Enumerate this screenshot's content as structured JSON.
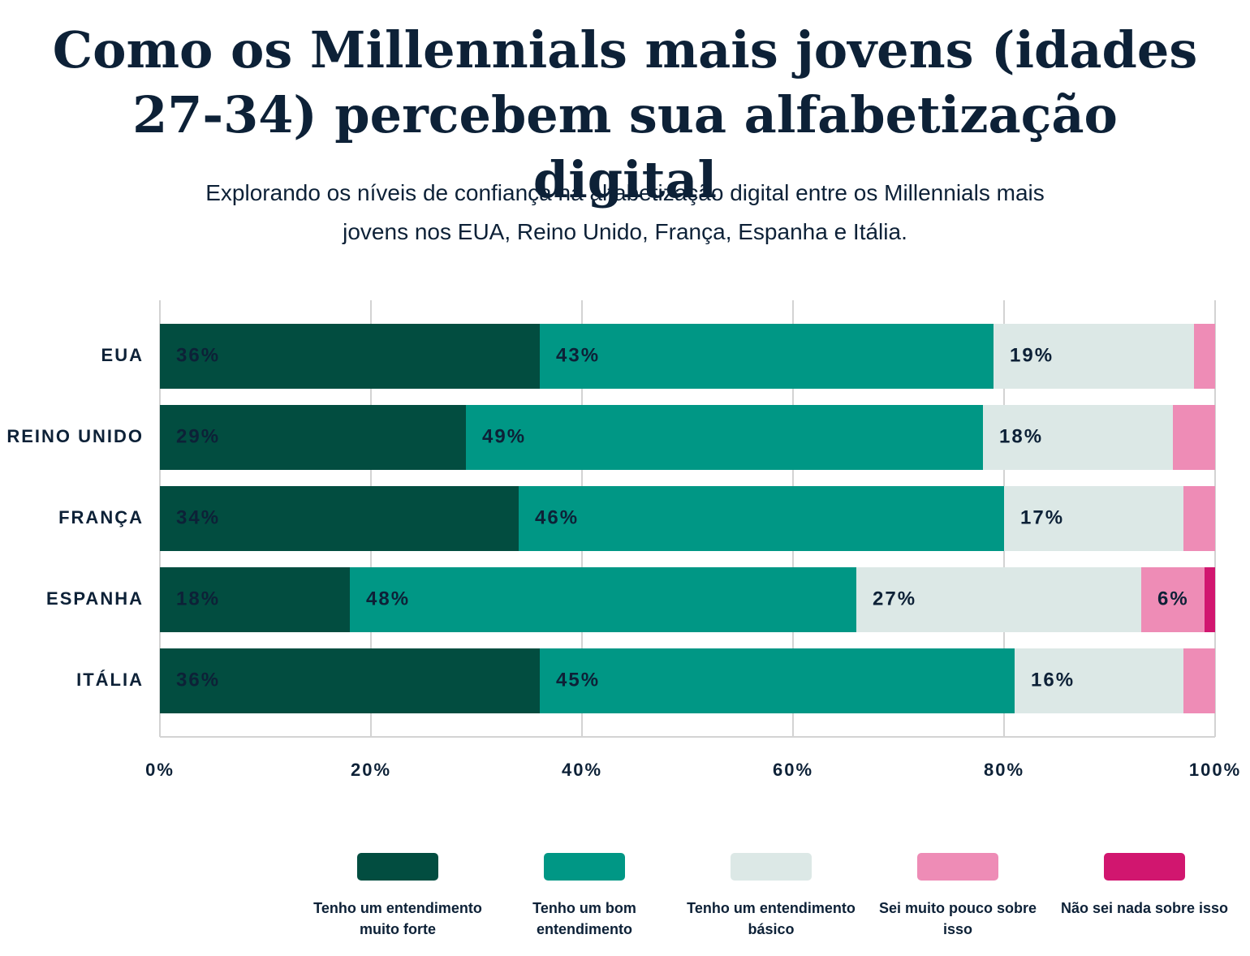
{
  "chart_data": {
    "type": "stacked-bar-horizontal",
    "title": "Como os Millennials mais jovens (idades 27-34) percebem sua alfabetização digital",
    "subtitle": "Explorando os níveis de confiança na alfabetização digital entre os Millennials mais jovens nos EUA, Reino Unido, França, Espanha e Itália.",
    "categories": [
      "EUA",
      "REINO UNIDO",
      "FRANÇA",
      "ESPANHA",
      "ITÁLIA"
    ],
    "series": [
      {
        "name": "Tenho um entendimento muito forte",
        "color": "#024d40",
        "values": [
          36,
          29,
          34,
          18,
          36
        ],
        "value_labels": [
          "36%",
          "29%",
          "34%",
          "18%",
          "36%"
        ]
      },
      {
        "name": "Tenho um bom entendimento",
        "color": "#009785",
        "values": [
          43,
          49,
          46,
          48,
          45
        ],
        "value_labels": [
          "43%",
          "49%",
          "46%",
          "48%",
          "45%"
        ]
      },
      {
        "name": "Tenho um entendimento básico",
        "color": "#dce8e6",
        "values": [
          19,
          18,
          17,
          27,
          16
        ],
        "value_labels": [
          "19%",
          "18%",
          "17%",
          "27%",
          "16%"
        ]
      },
      {
        "name": "Sei muito pouco sobre isso",
        "color": "#ee8cb6",
        "values": [
          2,
          4,
          3,
          6,
          3
        ],
        "value_labels": [
          null,
          null,
          null,
          "6%",
          null
        ]
      },
      {
        "name": "Não sei nada sobre isso",
        "color": "#d1166f",
        "values": [
          0,
          0,
          0,
          1,
          0
        ],
        "value_labels": [
          null,
          null,
          null,
          null,
          null
        ]
      }
    ],
    "xlim": [
      0,
      100
    ],
    "xticks": [
      {
        "value": 0,
        "label": "0%"
      },
      {
        "value": 20,
        "label": "20%"
      },
      {
        "value": 40,
        "label": "40%"
      },
      {
        "value": 60,
        "label": "60%"
      },
      {
        "value": 80,
        "label": "80%"
      },
      {
        "value": 100,
        "label": "100%"
      }
    ],
    "grid": true
  }
}
